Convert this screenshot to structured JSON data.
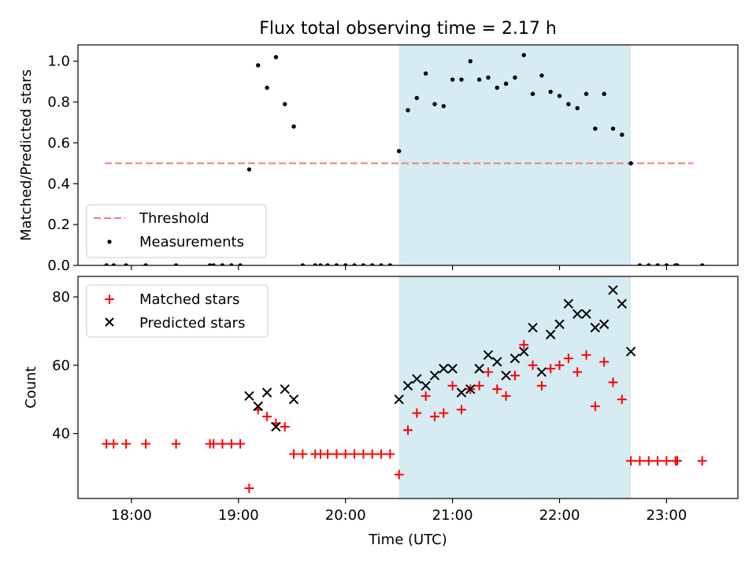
{
  "title": "Flux total observing time = 2.17 h",
  "xlabel": "Time (UTC)",
  "x_ticks": [
    "18:00",
    "19:00",
    "20:00",
    "21:00",
    "22:00",
    "23:00"
  ],
  "x_range": [
    "17:30",
    "23:40"
  ],
  "shaded_window": {
    "start": "20:30",
    "end": "22:40",
    "color": "#add8e6"
  },
  "colors": {
    "threshold": "#f08080",
    "measurements": "#000000",
    "matched": "#ff0000",
    "predicted": "#000000"
  },
  "chart_data": [
    {
      "type": "scatter",
      "ylabel": "Matched/Predicted stars",
      "ylim": [
        0.0,
        1.08
      ],
      "y_ticks": [
        "0.0",
        "0.2",
        "0.4",
        "0.6",
        "0.8",
        "1.0"
      ],
      "threshold": 0.5,
      "threshold_x": [
        "17:45",
        "23:15"
      ],
      "legend": {
        "placement": "lower-left",
        "entries": [
          "Threshold",
          "Measurements"
        ]
      },
      "series": [
        {
          "name": "Measurements",
          "points": [
            [
              "17:46",
              0.0
            ],
            [
              "17:50",
              0.0
            ],
            [
              "17:57",
              0.0
            ],
            [
              "18:08",
              0.0
            ],
            [
              "18:25",
              0.0
            ],
            [
              "18:44",
              0.0
            ],
            [
              "18:46",
              0.0
            ],
            [
              "18:51",
              0.0
            ],
            [
              "18:56",
              0.0
            ],
            [
              "19:01",
              0.0
            ],
            [
              "19:06",
              0.47
            ],
            [
              "19:11",
              0.98
            ],
            [
              "19:16",
              0.87
            ],
            [
              "19:21",
              1.02
            ],
            [
              "19:26",
              0.79
            ],
            [
              "19:31",
              0.68
            ],
            [
              "19:36",
              0.0
            ],
            [
              "19:43",
              0.0
            ],
            [
              "19:46",
              0.0
            ],
            [
              "19:50",
              0.0
            ],
            [
              "19:55",
              0.0
            ],
            [
              "20:00",
              0.0
            ],
            [
              "20:05",
              0.0
            ],
            [
              "20:10",
              0.0
            ],
            [
              "20:15",
              0.0
            ],
            [
              "20:20",
              0.0
            ],
            [
              "20:25",
              0.0
            ],
            [
              "20:30",
              0.56
            ],
            [
              "20:35",
              0.76
            ],
            [
              "20:40",
              0.82
            ],
            [
              "20:45",
              0.94
            ],
            [
              "20:50",
              0.79
            ],
            [
              "20:55",
              0.78
            ],
            [
              "21:00",
              0.91
            ],
            [
              "21:05",
              0.91
            ],
            [
              "21:10",
              1.0
            ],
            [
              "21:15",
              0.91
            ],
            [
              "21:20",
              0.92
            ],
            [
              "21:25",
              0.87
            ],
            [
              "21:30",
              0.89
            ],
            [
              "21:35",
              0.92
            ],
            [
              "21:40",
              1.03
            ],
            [
              "21:45",
              0.84
            ],
            [
              "21:50",
              0.93
            ],
            [
              "21:55",
              0.85
            ],
            [
              "22:00",
              0.83
            ],
            [
              "22:05",
              0.79
            ],
            [
              "22:10",
              0.77
            ],
            [
              "22:15",
              0.84
            ],
            [
              "22:20",
              0.67
            ],
            [
              "22:25",
              0.84
            ],
            [
              "22:30",
              0.67
            ],
            [
              "22:35",
              0.64
            ],
            [
              "22:40",
              0.5
            ],
            [
              "22:45",
              0.0
            ],
            [
              "22:50",
              0.0
            ],
            [
              "22:55",
              0.0
            ],
            [
              "23:00",
              0.0
            ],
            [
              "23:05",
              0.0
            ],
            [
              "23:06",
              0.0
            ],
            [
              "23:20",
              0.0
            ]
          ]
        }
      ]
    },
    {
      "type": "scatter",
      "ylabel": "Count",
      "ylim": [
        21,
        86
      ],
      "y_ticks": [
        "40",
        "60",
        "80"
      ],
      "legend": {
        "placement": "top-left",
        "entries": [
          "Matched stars",
          "Predicted stars"
        ]
      },
      "series": [
        {
          "name": "Matched stars",
          "points": [
            [
              "17:46",
              37
            ],
            [
              "17:50",
              37
            ],
            [
              "17:57",
              37
            ],
            [
              "18:08",
              37
            ],
            [
              "18:25",
              37
            ],
            [
              "18:44",
              37
            ],
            [
              "18:46",
              37
            ],
            [
              "18:51",
              37
            ],
            [
              "18:56",
              37
            ],
            [
              "19:01",
              37
            ],
            [
              "19:06",
              24
            ],
            [
              "19:11",
              47
            ],
            [
              "19:16",
              45
            ],
            [
              "19:21",
              43
            ],
            [
              "19:26",
              42
            ],
            [
              "19:31",
              34
            ],
            [
              "19:36",
              34
            ],
            [
              "19:43",
              34
            ],
            [
              "19:46",
              34
            ],
            [
              "19:50",
              34
            ],
            [
              "19:55",
              34
            ],
            [
              "20:00",
              34
            ],
            [
              "20:05",
              34
            ],
            [
              "20:10",
              34
            ],
            [
              "20:15",
              34
            ],
            [
              "20:20",
              34
            ],
            [
              "20:25",
              34
            ],
            [
              "20:30",
              28
            ],
            [
              "20:35",
              41
            ],
            [
              "20:40",
              46
            ],
            [
              "20:45",
              51
            ],
            [
              "20:50",
              45
            ],
            [
              "20:55",
              46
            ],
            [
              "21:00",
              54
            ],
            [
              "21:05",
              47
            ],
            [
              "21:10",
              53
            ],
            [
              "21:15",
              54
            ],
            [
              "21:20",
              58
            ],
            [
              "21:25",
              53
            ],
            [
              "21:30",
              51
            ],
            [
              "21:35",
              57
            ],
            [
              "21:40",
              66
            ],
            [
              "21:45",
              60
            ],
            [
              "21:50",
              54
            ],
            [
              "21:55",
              59
            ],
            [
              "22:00",
              60
            ],
            [
              "22:05",
              62
            ],
            [
              "22:10",
              58
            ],
            [
              "22:15",
              63
            ],
            [
              "22:20",
              48
            ],
            [
              "22:25",
              61
            ],
            [
              "22:30",
              55
            ],
            [
              "22:35",
              50
            ],
            [
              "22:40",
              32
            ],
            [
              "22:45",
              32
            ],
            [
              "22:50",
              32
            ],
            [
              "22:55",
              32
            ],
            [
              "23:00",
              32
            ],
            [
              "23:05",
              32
            ],
            [
              "23:06",
              32
            ],
            [
              "23:20",
              32
            ]
          ]
        },
        {
          "name": "Predicted stars",
          "points": [
            [
              "19:06",
              51
            ],
            [
              "19:11",
              48
            ],
            [
              "19:16",
              52
            ],
            [
              "19:21",
              42
            ],
            [
              "19:26",
              53
            ],
            [
              "19:31",
              50
            ],
            [
              "20:30",
              50
            ],
            [
              "20:35",
              54
            ],
            [
              "20:40",
              56
            ],
            [
              "20:45",
              54
            ],
            [
              "20:50",
              57
            ],
            [
              "20:55",
              59
            ],
            [
              "21:00",
              59
            ],
            [
              "21:05",
              52
            ],
            [
              "21:10",
              53
            ],
            [
              "21:15",
              59
            ],
            [
              "21:20",
              63
            ],
            [
              "21:25",
              61
            ],
            [
              "21:30",
              57
            ],
            [
              "21:35",
              62
            ],
            [
              "21:40",
              64
            ],
            [
              "21:45",
              71
            ],
            [
              "21:50",
              58
            ],
            [
              "21:55",
              69
            ],
            [
              "22:00",
              72
            ],
            [
              "22:05",
              78
            ],
            [
              "22:10",
              75
            ],
            [
              "22:15",
              75
            ],
            [
              "22:20",
              71
            ],
            [
              "22:25",
              72
            ],
            [
              "22:30",
              82
            ],
            [
              "22:35",
              78
            ],
            [
              "22:40",
              64
            ]
          ]
        }
      ]
    }
  ]
}
